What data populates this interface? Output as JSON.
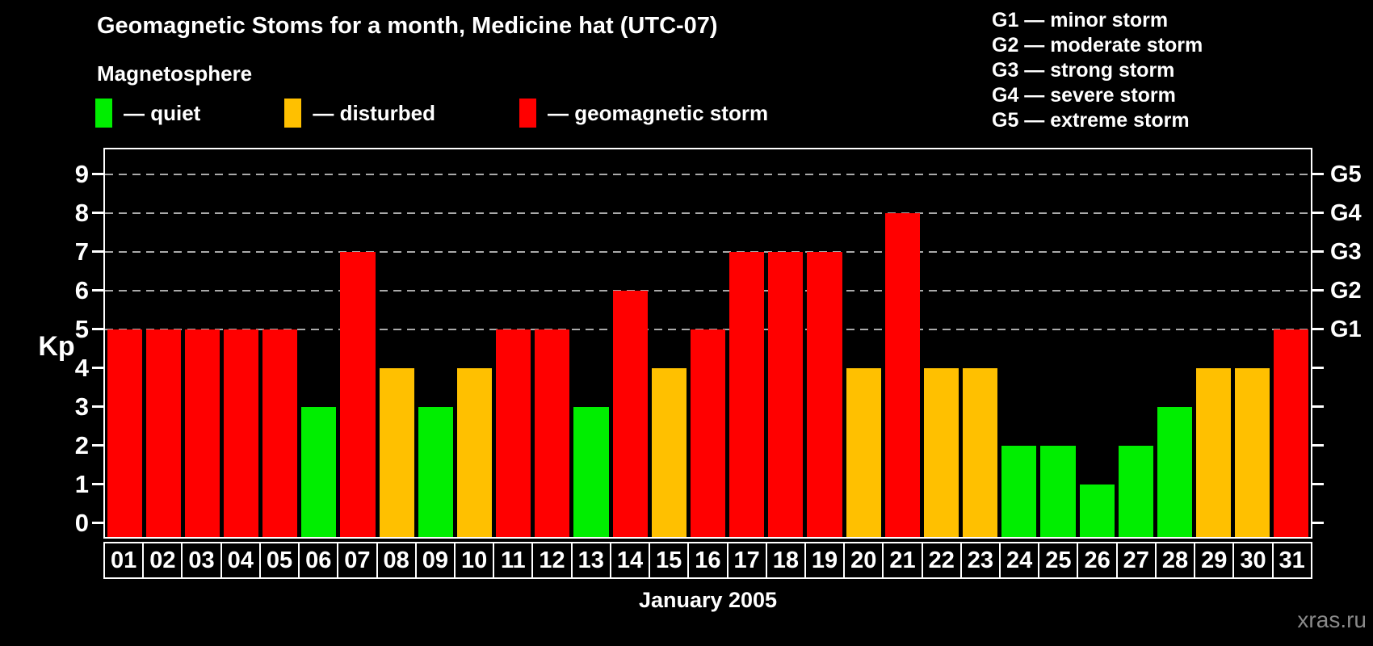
{
  "header": {
    "title": "Geomagnetic Stoms for a month, Medicine hat (UTC-07)",
    "legend_title": "Magnetosphere",
    "legend": [
      {
        "status": "quiet",
        "label": "— quiet"
      },
      {
        "status": "disturbed",
        "label": "— disturbed"
      },
      {
        "status": "storm",
        "label": "— geomagnetic storm"
      }
    ],
    "storm_scale_legend": [
      {
        "code": "G1",
        "label": "— minor storm"
      },
      {
        "code": "G2",
        "label": "— moderate storm"
      },
      {
        "code": "G3",
        "label": "— strong storm"
      },
      {
        "code": "G4",
        "label": "— severe storm"
      },
      {
        "code": "G5",
        "label": "— extreme storm"
      }
    ]
  },
  "theme": {
    "background": "#000000",
    "text": "#ffffff",
    "frame": "#ffffff",
    "grid": "#aaaaaa",
    "watermark": "#8a8a8a",
    "quiet": "#00ee00",
    "disturbed": "#ffc000",
    "storm": "#ff0000"
  },
  "chart_data": {
    "type": "bar",
    "title": "Geomagnetic Stoms for a month, Medicine hat (UTC-07)",
    "xlabel": "January 2005",
    "ylabel": "Kp",
    "ylim": [
      0,
      9
    ],
    "grid": "dashed horizontal lines at Kp 5-9 only",
    "grid_levels": [
      5,
      6,
      7,
      8,
      9
    ],
    "left_axis_ticks": [
      0,
      1,
      2,
      3,
      4,
      5,
      6,
      7,
      8,
      9
    ],
    "right_axis_labels": [
      {
        "value": 5,
        "label": "G1"
      },
      {
        "value": 6,
        "label": "G2"
      },
      {
        "value": 7,
        "label": "G3"
      },
      {
        "value": 8,
        "label": "G4"
      },
      {
        "value": 9,
        "label": "G5"
      }
    ],
    "categories": [
      "01",
      "02",
      "03",
      "04",
      "05",
      "06",
      "07",
      "08",
      "09",
      "10",
      "11",
      "12",
      "13",
      "14",
      "15",
      "16",
      "17",
      "18",
      "19",
      "20",
      "21",
      "22",
      "23",
      "24",
      "25",
      "26",
      "27",
      "28",
      "29",
      "30",
      "31"
    ],
    "values": [
      5,
      5,
      5,
      5,
      5,
      3,
      7,
      4,
      3,
      4,
      5,
      5,
      3,
      6,
      4,
      5,
      7,
      7,
      7,
      4,
      8,
      4,
      4,
      2,
      2,
      1,
      2,
      3,
      4,
      4,
      5
    ],
    "statuses": [
      "storm",
      "storm",
      "storm",
      "storm",
      "storm",
      "quiet",
      "storm",
      "disturbed",
      "quiet",
      "disturbed",
      "storm",
      "storm",
      "quiet",
      "storm",
      "disturbed",
      "storm",
      "storm",
      "storm",
      "storm",
      "disturbed",
      "storm",
      "disturbed",
      "disturbed",
      "quiet",
      "quiet",
      "quiet",
      "quiet",
      "quiet",
      "disturbed",
      "disturbed",
      "storm"
    ]
  },
  "footer": {
    "watermark": "xras.ru"
  }
}
